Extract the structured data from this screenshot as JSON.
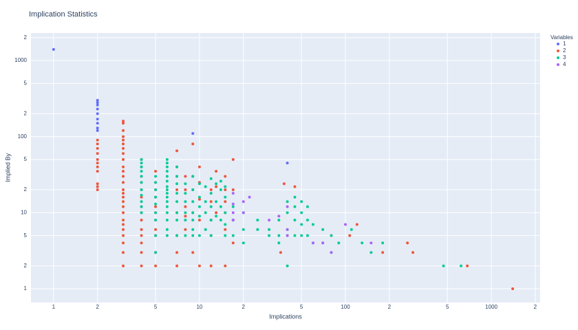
{
  "chart_data": {
    "type": "scatter",
    "title": "Implication Statistics",
    "x_label": "Implications",
    "y_label": "Implied By",
    "legend_title": "Variables",
    "legend_position": "right",
    "log_x": true,
    "log_y": true,
    "grid": true,
    "xlim": [
      0.7,
      2160
    ],
    "ylim": [
      0.66,
      2300
    ],
    "xticks": [
      1,
      2,
      5,
      10,
      {
        "value": 20,
        "label": "2"
      },
      {
        "value": 50,
        "label": "5"
      },
      100,
      {
        "value": 200,
        "label": "2"
      },
      {
        "value": 500,
        "label": "5"
      },
      1000,
      {
        "value": 2000,
        "label": "2"
      }
    ],
    "yticks": [
      1,
      2,
      5,
      10,
      {
        "value": 20,
        "label": "2"
      },
      {
        "value": 50,
        "label": "5"
      },
      100,
      {
        "value": 200,
        "label": "2"
      },
      {
        "value": 500,
        "label": "5"
      },
      1000,
      {
        "value": 2000,
        "label": "2"
      }
    ],
    "series": [
      {
        "name": "1",
        "color": "#636efa",
        "x": [
          1,
          2,
          2,
          2,
          2,
          2,
          2,
          2,
          2,
          2,
          9,
          40
        ],
        "values": [
          1400,
          300,
          280,
          260,
          230,
          200,
          170,
          150,
          130,
          120,
          110,
          45
        ]
      },
      {
        "name": "2",
        "color": "#EF553B",
        "x": [
          2,
          2,
          2,
          2,
          2,
          2,
          2,
          2,
          2,
          2,
          2,
          3,
          3,
          3,
          3,
          3,
          3,
          3,
          3,
          3,
          3,
          3,
          3,
          3,
          3,
          3,
          3,
          3,
          3,
          3,
          3,
          3,
          3,
          3,
          3,
          3,
          3,
          4,
          4,
          4,
          4,
          4,
          4,
          4,
          4,
          4,
          4,
          4,
          4,
          4,
          4,
          5,
          5,
          5,
          5,
          5,
          5,
          5,
          5,
          5,
          5,
          5,
          7,
          7,
          7,
          7,
          7,
          7,
          7,
          7,
          8,
          8,
          8,
          8,
          8,
          9,
          9,
          9,
          9,
          9,
          10,
          10,
          10,
          10,
          10,
          12,
          12,
          12,
          12,
          12,
          13,
          13,
          13,
          15,
          15,
          15,
          15,
          15,
          15,
          17,
          17,
          17,
          17,
          36,
          38,
          45,
          80,
          107,
          120,
          180,
          266,
          290,
          684,
          1400
        ],
        "values": [
          90,
          80,
          70,
          60,
          50,
          45,
          40,
          35,
          24,
          22,
          20,
          160,
          150,
          120,
          100,
          90,
          80,
          70,
          60,
          50,
          40,
          35,
          30,
          25,
          20,
          18,
          16,
          14,
          12,
          10,
          8,
          7,
          6,
          5,
          4,
          3,
          2,
          50,
          40,
          30,
          25,
          20,
          16,
          12,
          10,
          8,
          6,
          5,
          4,
          3,
          2,
          35,
          25,
          20,
          16,
          12,
          10,
          8,
          6,
          5,
          3,
          2,
          65,
          40,
          30,
          20,
          10,
          5,
          3,
          2,
          30,
          20,
          12,
          9,
          6,
          80,
          30,
          20,
          10,
          3,
          40,
          25,
          15,
          8,
          2,
          20,
          14,
          8,
          5,
          2,
          35,
          22,
          10,
          30,
          20,
          14,
          10,
          6,
          2,
          50,
          20,
          8,
          4,
          3,
          24,
          22,
          5,
          5,
          7,
          3,
          4,
          3,
          2,
          1
        ]
      },
      {
        "name": "3",
        "color": "#00cc96",
        "x": [
          4,
          4,
          4,
          4,
          4,
          4,
          4,
          4,
          4,
          4,
          4,
          5,
          5,
          5,
          5,
          5,
          5,
          5,
          5,
          5,
          6,
          6,
          6,
          6,
          6,
          6,
          6,
          6,
          6,
          6,
          6,
          6,
          6,
          6,
          6,
          6,
          7,
          7,
          7,
          7,
          7,
          7,
          7,
          7,
          8,
          8,
          8,
          8,
          8,
          8,
          9,
          9,
          9,
          9,
          9,
          9,
          9,
          10,
          10,
          10,
          10,
          10,
          11,
          11,
          11,
          11,
          12,
          12,
          12,
          12,
          12,
          13,
          13,
          13,
          14,
          14,
          14,
          14,
          15,
          15,
          15,
          15,
          15,
          17,
          17,
          17,
          20,
          20,
          20,
          25,
          25,
          30,
          30,
          35,
          35,
          35,
          40,
          40,
          40,
          40,
          40,
          45,
          45,
          45,
          45,
          50,
          50,
          50,
          50,
          55,
          55,
          55,
          60,
          60,
          70,
          70,
          80,
          80,
          90,
          110,
          130,
          150,
          180,
          470,
          620
        ],
        "values": [
          50,
          45,
          40,
          35,
          30,
          25,
          20,
          17,
          14,
          12,
          10,
          30,
          25,
          20,
          16,
          13,
          10,
          8,
          5,
          3,
          50,
          45,
          40,
          35,
          30,
          26,
          22,
          20,
          18,
          16,
          14,
          12,
          10,
          8,
          6,
          5,
          40,
          30,
          24,
          18,
          14,
          10,
          8,
          5,
          24,
          18,
          14,
          10,
          8,
          5,
          30,
          20,
          14,
          10,
          8,
          6,
          5,
          24,
          16,
          12,
          9,
          5,
          22,
          14,
          10,
          6,
          28,
          18,
          12,
          8,
          5,
          24,
          14,
          9,
          26,
          20,
          12,
          8,
          22,
          16,
          10,
          7,
          5,
          12,
          8,
          5,
          10,
          6,
          4,
          8,
          6,
          6,
          5,
          8,
          5,
          4,
          14,
          10,
          6,
          5,
          2,
          16,
          12,
          8,
          5,
          14,
          10,
          7,
          5,
          12,
          8,
          5,
          7,
          4,
          6,
          4,
          5,
          3,
          4,
          6,
          4,
          3,
          4,
          2,
          2
        ]
      },
      {
        "name": "4",
        "color": "#ab63fa",
        "x": [
          17,
          17,
          17,
          17,
          20,
          20,
          22,
          30,
          35,
          40,
          40,
          40,
          60,
          70,
          80,
          100,
          150
        ],
        "values": [
          18,
          13,
          10,
          8,
          14,
          10,
          16,
          8,
          9,
          12,
          6,
          5,
          4,
          4,
          3,
          7,
          4
        ]
      }
    ]
  }
}
